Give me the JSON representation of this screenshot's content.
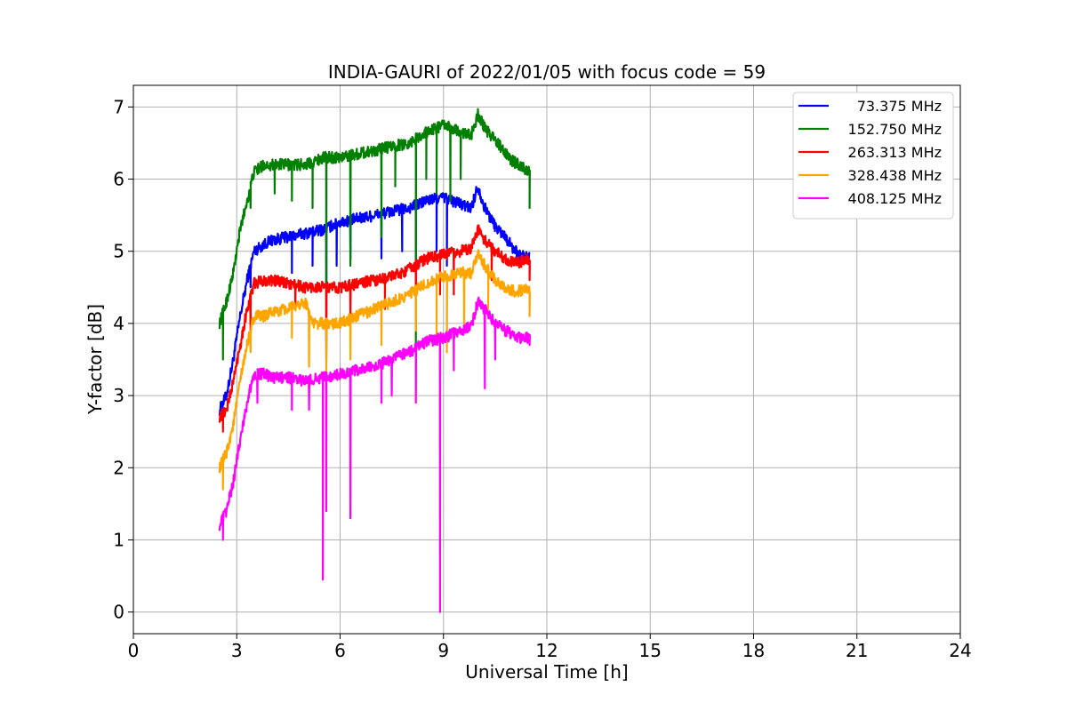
{
  "chart_data": {
    "type": "line",
    "title": "INDIA-GAURI of 2022/01/05 with focus code = 59",
    "xlabel": "Universal Time [h]",
    "ylabel": "Y-factor [dB]",
    "xlim": [
      0,
      24
    ],
    "ylim": [
      -0.3,
      7.3
    ],
    "xticks": [
      0,
      3,
      6,
      9,
      12,
      15,
      18,
      21,
      24
    ],
    "yticks": [
      0,
      1,
      2,
      3,
      4,
      5,
      6,
      7
    ],
    "grid": true,
    "legend_position": "top-right",
    "series": [
      {
        "name": "73.375 MHz",
        "color": "#0000ff",
        "points": [
          [
            2.5,
            2.8
          ],
          [
            2.7,
            3.0
          ],
          [
            2.9,
            3.5
          ],
          [
            3.1,
            4.1
          ],
          [
            3.3,
            4.6
          ],
          [
            3.5,
            5.0
          ],
          [
            3.8,
            5.1
          ],
          [
            4.0,
            5.15
          ],
          [
            4.5,
            5.2
          ],
          [
            5.0,
            5.25
          ],
          [
            5.5,
            5.3
          ],
          [
            6.0,
            5.4
          ],
          [
            6.5,
            5.45
          ],
          [
            7.0,
            5.5
          ],
          [
            7.5,
            5.55
          ],
          [
            8.0,
            5.6
          ],
          [
            8.5,
            5.7
          ],
          [
            9.0,
            5.75
          ],
          [
            9.5,
            5.65
          ],
          [
            9.8,
            5.6
          ],
          [
            10.0,
            5.9
          ],
          [
            10.2,
            5.6
          ],
          [
            10.5,
            5.35
          ],
          [
            10.8,
            5.2
          ],
          [
            11.0,
            5.05
          ],
          [
            11.2,
            4.95
          ],
          [
            11.5,
            4.9
          ]
        ],
        "dips": [
          [
            3.4,
            4.5
          ],
          [
            4.6,
            4.7
          ],
          [
            5.2,
            4.8
          ],
          [
            5.6,
            3.8
          ],
          [
            5.9,
            4.8
          ],
          [
            6.3,
            4.9
          ],
          [
            7.2,
            4.9
          ],
          [
            7.8,
            5.0
          ],
          [
            8.2,
            4.5
          ],
          [
            8.8,
            5.0
          ],
          [
            9.1,
            4.8
          ]
        ]
      },
      {
        "name": "152.750 MHz",
        "color": "#008000",
        "points": [
          [
            2.5,
            4.0
          ],
          [
            2.7,
            4.3
          ],
          [
            2.9,
            4.7
          ],
          [
            3.1,
            5.3
          ],
          [
            3.3,
            5.7
          ],
          [
            3.5,
            6.1
          ],
          [
            3.8,
            6.2
          ],
          [
            4.0,
            6.2
          ],
          [
            4.5,
            6.2
          ],
          [
            5.0,
            6.2
          ],
          [
            5.5,
            6.3
          ],
          [
            6.0,
            6.3
          ],
          [
            6.5,
            6.35
          ],
          [
            7.0,
            6.4
          ],
          [
            7.5,
            6.45
          ],
          [
            8.0,
            6.5
          ],
          [
            8.5,
            6.65
          ],
          [
            9.0,
            6.75
          ],
          [
            9.5,
            6.65
          ],
          [
            9.8,
            6.6
          ],
          [
            10.0,
            6.9
          ],
          [
            10.2,
            6.7
          ],
          [
            10.5,
            6.55
          ],
          [
            10.8,
            6.35
          ],
          [
            11.0,
            6.25
          ],
          [
            11.2,
            6.2
          ],
          [
            11.5,
            6.1
          ]
        ],
        "dips": [
          [
            2.6,
            3.5
          ],
          [
            3.4,
            5.6
          ],
          [
            4.1,
            5.8
          ],
          [
            4.6,
            5.7
          ],
          [
            5.2,
            5.6
          ],
          [
            5.6,
            3.6
          ],
          [
            6.3,
            4.8
          ],
          [
            7.2,
            5.2
          ],
          [
            7.6,
            5.9
          ],
          [
            8.2,
            3.7
          ],
          [
            8.5,
            6.0
          ],
          [
            8.8,
            5.8
          ],
          [
            9.2,
            5.7
          ],
          [
            9.5,
            6.0
          ],
          [
            11.5,
            5.6
          ]
        ]
      },
      {
        "name": "263.313 MHz",
        "color": "#ff0000",
        "points": [
          [
            2.5,
            2.7
          ],
          [
            2.7,
            2.8
          ],
          [
            2.9,
            3.2
          ],
          [
            3.1,
            3.7
          ],
          [
            3.3,
            4.2
          ],
          [
            3.5,
            4.55
          ],
          [
            3.8,
            4.6
          ],
          [
            4.0,
            4.6
          ],
          [
            4.5,
            4.55
          ],
          [
            5.0,
            4.5
          ],
          [
            5.5,
            4.5
          ],
          [
            6.0,
            4.5
          ],
          [
            6.5,
            4.55
          ],
          [
            7.0,
            4.6
          ],
          [
            7.5,
            4.65
          ],
          [
            8.0,
            4.75
          ],
          [
            8.5,
            4.9
          ],
          [
            9.0,
            4.95
          ],
          [
            9.5,
            5.0
          ],
          [
            9.8,
            5.05
          ],
          [
            10.0,
            5.3
          ],
          [
            10.2,
            5.15
          ],
          [
            10.5,
            5.0
          ],
          [
            10.8,
            4.9
          ],
          [
            11.0,
            4.85
          ],
          [
            11.2,
            4.85
          ],
          [
            11.5,
            4.9
          ]
        ],
        "dips": [
          [
            2.6,
            2.5
          ],
          [
            3.4,
            3.9
          ],
          [
            4.7,
            4.2
          ],
          [
            5.6,
            3.5
          ],
          [
            6.3,
            4.1
          ],
          [
            7.3,
            4.2
          ],
          [
            8.2,
            4.3
          ],
          [
            8.9,
            4.4
          ],
          [
            9.3,
            4.4
          ],
          [
            10.4,
            4.6
          ],
          [
            11.5,
            4.6
          ]
        ]
      },
      {
        "name": "328.438 MHz",
        "color": "#ffa500",
        "points": [
          [
            2.5,
            2.0
          ],
          [
            2.7,
            2.2
          ],
          [
            2.9,
            2.6
          ],
          [
            3.1,
            3.2
          ],
          [
            3.3,
            3.7
          ],
          [
            3.5,
            4.1
          ],
          [
            3.8,
            4.1
          ],
          [
            4.0,
            4.15
          ],
          [
            4.5,
            4.2
          ],
          [
            5.0,
            4.3
          ],
          [
            5.2,
            4.0
          ],
          [
            5.5,
            4.0
          ],
          [
            6.0,
            4.0
          ],
          [
            6.5,
            4.1
          ],
          [
            7.0,
            4.2
          ],
          [
            7.5,
            4.3
          ],
          [
            8.0,
            4.4
          ],
          [
            8.5,
            4.55
          ],
          [
            9.0,
            4.65
          ],
          [
            9.5,
            4.7
          ],
          [
            9.8,
            4.7
          ],
          [
            10.0,
            4.95
          ],
          [
            10.2,
            4.8
          ],
          [
            10.5,
            4.6
          ],
          [
            10.8,
            4.5
          ],
          [
            11.0,
            4.45
          ],
          [
            11.2,
            4.45
          ],
          [
            11.5,
            4.5
          ]
        ],
        "dips": [
          [
            2.6,
            1.7
          ],
          [
            3.4,
            3.6
          ],
          [
            4.6,
            3.8
          ],
          [
            5.1,
            3.4
          ],
          [
            5.6,
            3.3
          ],
          [
            6.3,
            3.5
          ],
          [
            7.2,
            3.7
          ],
          [
            8.2,
            3.9
          ],
          [
            8.8,
            3.8
          ],
          [
            9.1,
            3.6
          ],
          [
            9.6,
            4.0
          ],
          [
            10.3,
            4.2
          ],
          [
            11.5,
            4.1
          ]
        ]
      },
      {
        "name": "408.125 MHz",
        "color": "#ff00ff",
        "points": [
          [
            2.5,
            1.2
          ],
          [
            2.7,
            1.4
          ],
          [
            2.9,
            1.8
          ],
          [
            3.1,
            2.4
          ],
          [
            3.3,
            2.9
          ],
          [
            3.5,
            3.3
          ],
          [
            3.8,
            3.3
          ],
          [
            4.0,
            3.25
          ],
          [
            4.5,
            3.25
          ],
          [
            5.0,
            3.2
          ],
          [
            5.5,
            3.25
          ],
          [
            6.0,
            3.3
          ],
          [
            6.5,
            3.35
          ],
          [
            7.0,
            3.4
          ],
          [
            7.5,
            3.5
          ],
          [
            8.0,
            3.6
          ],
          [
            8.5,
            3.75
          ],
          [
            9.0,
            3.8
          ],
          [
            9.5,
            3.9
          ],
          [
            9.8,
            3.95
          ],
          [
            10.0,
            4.3
          ],
          [
            10.2,
            4.2
          ],
          [
            10.5,
            4.0
          ],
          [
            10.8,
            3.9
          ],
          [
            11.0,
            3.85
          ],
          [
            11.2,
            3.8
          ],
          [
            11.5,
            3.8
          ]
        ],
        "dips": [
          [
            2.6,
            1.0
          ],
          [
            3.6,
            2.9
          ],
          [
            4.6,
            2.8
          ],
          [
            5.1,
            2.8
          ],
          [
            5.5,
            0.45
          ],
          [
            5.6,
            1.4
          ],
          [
            6.3,
            1.3
          ],
          [
            7.2,
            2.9
          ],
          [
            7.5,
            3.0
          ],
          [
            8.2,
            2.9
          ],
          [
            8.9,
            0.0
          ],
          [
            9.3,
            3.35
          ],
          [
            10.2,
            3.1
          ],
          [
            10.5,
            3.5
          ],
          [
            11.5,
            3.7
          ]
        ]
      }
    ]
  }
}
